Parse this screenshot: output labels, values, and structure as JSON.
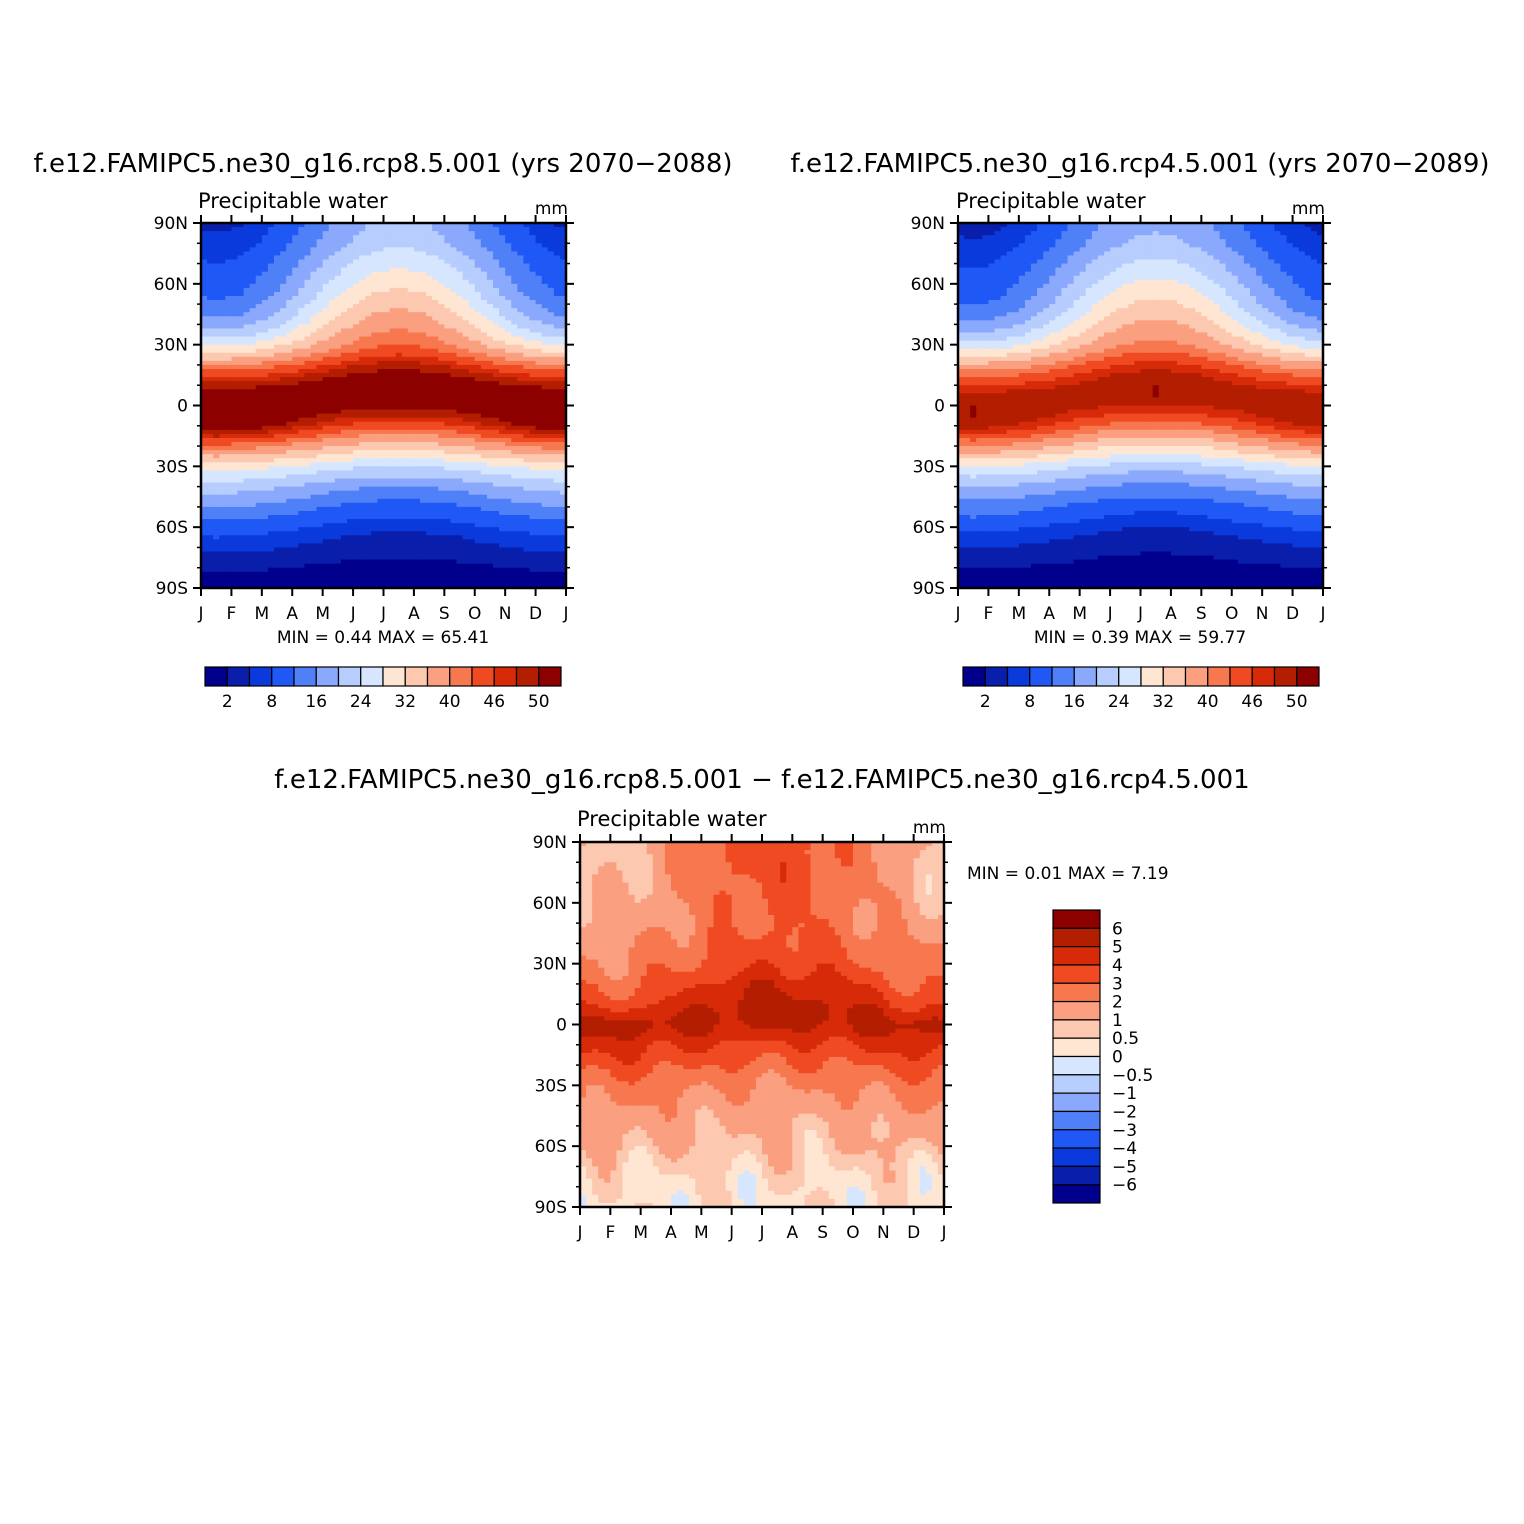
{
  "chart_data": [
    {
      "type": "heatmap",
      "title": "f.e12.FAMIPC5.ne30_g16.rcp8.5.001 (yrs 2070−2088)",
      "subtitle": "Precipitable water",
      "units": "mm",
      "x_ticks": [
        "J",
        "F",
        "M",
        "A",
        "M",
        "J",
        "J",
        "A",
        "S",
        "O",
        "N",
        "D",
        "J"
      ],
      "y_ticks": [
        "90N",
        "60N",
        "30N",
        "0",
        "30S",
        "60S",
        "90S"
      ],
      "xlim": [
        0,
        12
      ],
      "ylim": [
        -90,
        90
      ],
      "min_max_text": "MIN =    0.44  MAX =    65.41",
      "min": 0.44,
      "max": 65.41,
      "contour_levels": [
        2,
        5,
        8,
        12,
        16,
        20,
        24,
        28,
        32,
        36,
        40,
        43,
        46,
        48,
        50
      ],
      "colorbar_labels": [
        "2",
        "8",
        "16",
        "24",
        "32",
        "40",
        "46",
        "50"
      ],
      "colors": [
        "#00008c",
        "#0a1eac",
        "#0b3adc",
        "#1f58f5",
        "#4f80f8",
        "#8aa8fc",
        "#b6cdfe",
        "#d6e6ff",
        "#fee6d2",
        "#fdc8b0",
        "#fa9f80",
        "#f7784f",
        "#f04a22",
        "#d62a08",
        "#b31d00",
        "#8c0000"
      ],
      "grid": false,
      "series": [
        {
          "lat": [
            90,
            85,
            80,
            75,
            70,
            65,
            60,
            55,
            50,
            45,
            40,
            35,
            30,
            25,
            20,
            15,
            10,
            5,
            0,
            -5,
            -10,
            -15,
            -20,
            -25,
            -30,
            -35,
            -40,
            -45,
            -50,
            -55,
            -60,
            -65,
            -70,
            -75,
            -80,
            -85,
            -90
          ],
          "jan": [
            4,
            5,
            6,
            7,
            8,
            9,
            10,
            11,
            13,
            15,
            18,
            22,
            27,
            33,
            40,
            45,
            49,
            52,
            53,
            53,
            52,
            48,
            42,
            36,
            30,
            26,
            22,
            19,
            16,
            13,
            10,
            8,
            6,
            4,
            2.5,
            1.2,
            0.8
          ],
          "jul": [
            21,
            22,
            23,
            25,
            27,
            29,
            31,
            33,
            35,
            37,
            39,
            41,
            43,
            46,
            49,
            51,
            53,
            53,
            51,
            48,
            44,
            39,
            34,
            29,
            24,
            20,
            16,
            13,
            10,
            8,
            6,
            4,
            3,
            2,
            1,
            0.6,
            0.44
          ]
        }
      ]
    },
    {
      "type": "heatmap",
      "title": "f.e12.FAMIPC5.ne30_g16.rcp4.5.001 (yrs 2070−2089)",
      "subtitle": "Precipitable water",
      "units": "mm",
      "x_ticks": [
        "J",
        "F",
        "M",
        "A",
        "M",
        "J",
        "J",
        "A",
        "S",
        "O",
        "N",
        "D",
        "J"
      ],
      "y_ticks": [
        "90N",
        "60N",
        "30N",
        "0",
        "30S",
        "60S",
        "90S"
      ],
      "xlim": [
        0,
        12
      ],
      "ylim": [
        -90,
        90
      ],
      "min_max_text": "MIN =    0.39  MAX =    59.77",
      "min": 0.39,
      "max": 59.77,
      "contour_levels": [
        2,
        5,
        8,
        12,
        16,
        20,
        24,
        28,
        32,
        36,
        40,
        43,
        46,
        48,
        50
      ],
      "colorbar_labels": [
        "2",
        "8",
        "16",
        "24",
        "32",
        "40",
        "46",
        "50"
      ],
      "colors": [
        "#00008c",
        "#0a1eac",
        "#0b3adc",
        "#1f58f5",
        "#4f80f8",
        "#8aa8fc",
        "#b6cdfe",
        "#d6e6ff",
        "#fee6d2",
        "#fdc8b0",
        "#fa9f80",
        "#f7784f",
        "#f04a22",
        "#d62a08",
        "#b31d00",
        "#8c0000"
      ],
      "grid": false,
      "series": [
        {
          "lat": [
            90,
            85,
            80,
            75,
            70,
            65,
            60,
            55,
            50,
            45,
            40,
            35,
            30,
            25,
            20,
            15,
            10,
            5,
            0,
            -5,
            -10,
            -15,
            -20,
            -25,
            -30,
            -35,
            -40,
            -45,
            -50,
            -55,
            -60,
            -65,
            -70,
            -75,
            -80,
            -85,
            -90
          ],
          "jan": [
            3.5,
            4.5,
            5.5,
            6.5,
            7.5,
            8.5,
            9.5,
            10.5,
            12,
            14,
            17,
            21,
            25,
            31,
            37,
            42,
            46,
            49,
            50,
            50,
            49,
            45,
            40,
            34,
            28,
            24,
            20,
            17,
            14,
            12,
            9,
            7,
            5,
            3.5,
            2,
            1,
            0.7
          ],
          "jul": [
            19,
            20,
            21,
            23,
            25,
            27,
            29,
            31,
            33,
            35,
            37,
            39,
            41,
            44,
            47,
            49,
            50,
            50,
            48,
            45,
            41,
            36,
            31,
            27,
            22,
            18,
            15,
            12,
            9,
            7,
            5,
            3.5,
            2.5,
            1.6,
            0.9,
            0.5,
            0.39
          ]
        }
      ]
    },
    {
      "type": "heatmap",
      "title": "f.e12.FAMIPC5.ne30_g16.rcp8.5.001 − f.e12.FAMIPC5.ne30_g16.rcp4.5.001",
      "subtitle": "Precipitable water",
      "units": "mm",
      "x_ticks": [
        "J",
        "F",
        "M",
        "A",
        "M",
        "J",
        "J",
        "A",
        "S",
        "O",
        "N",
        "D",
        "J"
      ],
      "y_ticks": [
        "90N",
        "60N",
        "30N",
        "0",
        "30S",
        "60S",
        "90S"
      ],
      "xlim": [
        0,
        12
      ],
      "ylim": [
        -90,
        90
      ],
      "min_max_text": "MIN =    0.01  MAX =    7.19",
      "min": 0.01,
      "max": 7.19,
      "contour_levels": [
        -6,
        -5,
        -4,
        -3,
        -2,
        -1,
        -0.5,
        0,
        0.5,
        1,
        2,
        3,
        4,
        5,
        6
      ],
      "colorbar_labels": [
        "6",
        "5",
        "4",
        "3",
        "2",
        "1",
        "0.5",
        "0",
        "−0.5",
        "−1",
        "−2",
        "−3",
        "−4",
        "−5",
        "−6"
      ],
      "colors": [
        "#00008c",
        "#0a1eac",
        "#0b3adc",
        "#1f58f5",
        "#4f80f8",
        "#8aa8fc",
        "#b6cdfe",
        "#d6e6ff",
        "#fee6d2",
        "#fdc8b0",
        "#fa9f80",
        "#f7784f",
        "#f04a22",
        "#d62a08",
        "#b31d00",
        "#8c0000"
      ],
      "grid": false,
      "series": [
        {
          "lat": [
            90,
            80,
            70,
            60,
            50,
            40,
            30,
            20,
            10,
            5,
            0,
            -5,
            -10,
            -20,
            -30,
            -40,
            -50,
            -60,
            -70,
            -80,
            -90
          ],
          "jan": [
            0.8,
            0.7,
            0.8,
            1,
            1.3,
            1.8,
            2,
            2.6,
            3.5,
            4.5,
            5.5,
            5,
            4.5,
            3.5,
            2.5,
            2,
            1.5,
            1.1,
            0.6,
            0.4,
            0.3
          ],
          "jul": [
            3.5,
            3.6,
            3.4,
            3.2,
            3,
            3.3,
            3.8,
            4.8,
            5.5,
            5.6,
            5.2,
            4.5,
            3.8,
            2.8,
            2,
            1.4,
            1,
            0.9,
            0.6,
            0.4,
            0.3
          ]
        }
      ]
    }
  ]
}
